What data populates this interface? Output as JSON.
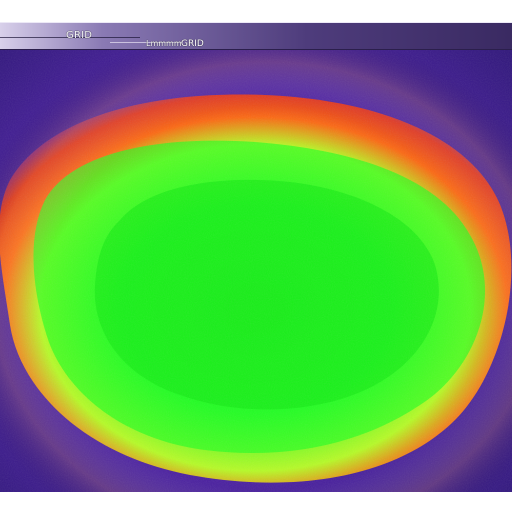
{
  "topbar": {
    "label_a": "GRID",
    "label_b": "Lmmmm",
    "label_c": "GRID"
  },
  "heatmap": {
    "colors": {
      "outer": "#4a1fa0",
      "mid_outer": "#7a2a9a",
      "red": "#e0301a",
      "orange": "#ff6a10",
      "yellow": "#c8ff20",
      "green": "#22ff22",
      "center": "#12e812"
    }
  }
}
